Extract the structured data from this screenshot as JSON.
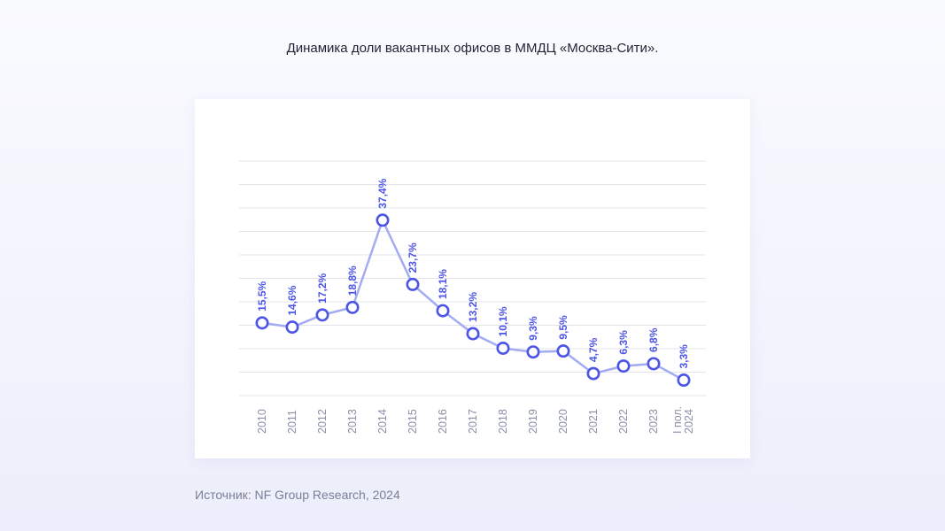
{
  "page": {
    "title": "Динамика доли вакантных офисов в ММДЦ «Москва-Сити».",
    "source": "Источник: NF Group Research, 2024"
  },
  "colors": {
    "line": "#a3abf3",
    "point": "#4d55e6",
    "label": "#4d55e6",
    "tick": "#8a8ea8",
    "grid": "#e3e4ea"
  },
  "chart_data": {
    "type": "line",
    "title": "Динамика доли вакантных офисов в ММДЦ «Москва-Сити».",
    "xlabel": "",
    "ylabel": "",
    "categories": [
      "2010",
      "2011",
      "2012",
      "2013",
      "2014",
      "2015",
      "2016",
      "2017",
      "2018",
      "2019",
      "2020",
      "2021",
      "2022",
      "2023",
      "I пол. 2024"
    ],
    "values": [
      15.5,
      14.6,
      17.2,
      18.8,
      37.4,
      23.7,
      18.1,
      13.2,
      10.1,
      9.3,
      9.5,
      4.7,
      6.3,
      6.8,
      3.3
    ],
    "value_labels": [
      "15,5%",
      "14,6%",
      "17,2%",
      "18,8%",
      "37,4%",
      "23,7%",
      "18,1%",
      "13,2%",
      "10,1%",
      "9,3%",
      "9,5%",
      "4,7%",
      "6,3%",
      "6,8%",
      "3,3%"
    ],
    "unit": "%",
    "ylim": [
      0,
      50
    ],
    "gridlines": 11,
    "grid": true,
    "legend": false
  }
}
